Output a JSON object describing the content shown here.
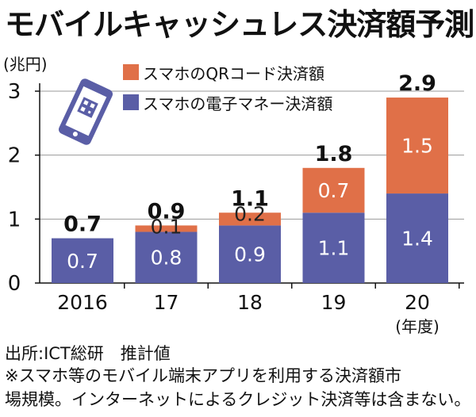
{
  "chart_data": {
    "type": "bar",
    "stacked": true,
    "title": "モバイルキャッシュレス決済額予測",
    "y_unit_label": "(兆円)",
    "x_unit_label": "(年度)",
    "categories": [
      "2016",
      "17",
      "18",
      "19",
      "20"
    ],
    "series": [
      {
        "name": "スマホの電子マネー決済額",
        "values": [
          0.7,
          0.8,
          0.9,
          1.1,
          1.4
        ],
        "color": "#5a5ea6"
      },
      {
        "name": "スマホのQRコード決済額",
        "values": [
          0.0,
          0.1,
          0.2,
          0.7,
          1.5
        ],
        "color": "#e07048"
      }
    ],
    "segment_labels": [
      [
        "0.7",
        "0.8",
        "0.9",
        "1.1",
        "1.4"
      ],
      [
        "",
        "0.1",
        "0.2",
        "0.7",
        "1.5"
      ]
    ],
    "totals": [
      "0.7",
      "0.9",
      "1.1",
      "1.8",
      "2.9"
    ],
    "ylim": [
      0,
      3
    ],
    "yticks": [
      0,
      1,
      2,
      3
    ],
    "grid": true,
    "legend_position": "top"
  },
  "icons": {
    "phone": "smartphone-qr-icon"
  },
  "footer": {
    "source": "出所:ICT総研　推計値",
    "note_line1": "※スマホ等のモバイル端末アプリを利用する決済額市",
    "note_line2": "場規模。インターネットによるクレジット決済等は含まない。"
  }
}
